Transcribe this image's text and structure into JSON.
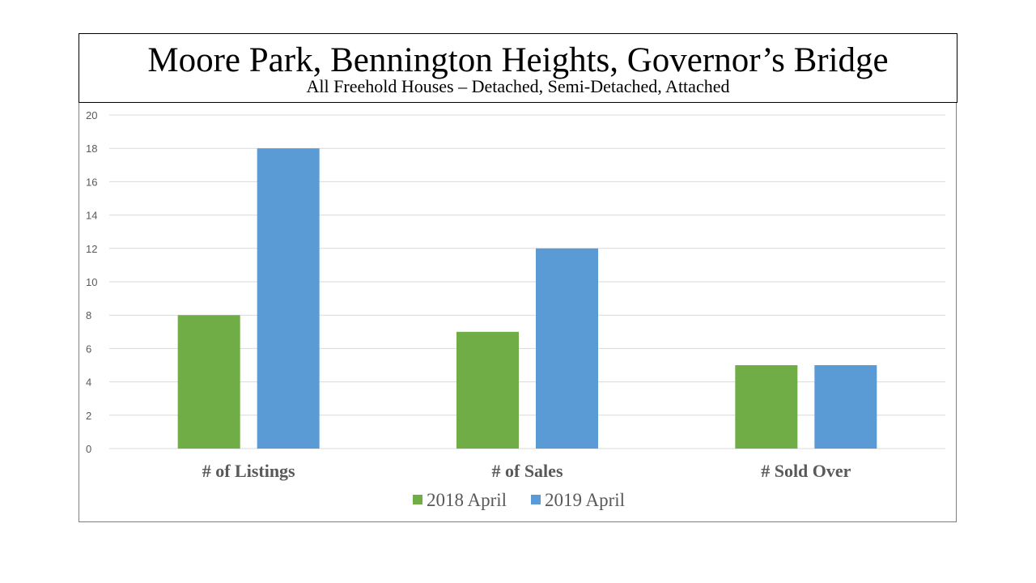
{
  "title": "Moore Park, Bennington Heights, Governor’s Bridge",
  "subtitle": "All Freehold Houses – Detached, Semi-Detached, Attached",
  "chart_data": {
    "type": "bar",
    "title": "Moore Park, Bennington Heights, Governor’s Bridge",
    "subtitle": "All Freehold Houses – Detached, Semi-Detached, Attached",
    "categories": [
      "# of Listings",
      "# of Sales",
      "# Sold Over"
    ],
    "series": [
      {
        "name": "2018 April",
        "values": [
          8,
          7,
          5
        ],
        "color": "#70ad47"
      },
      {
        "name": "2019 April",
        "values": [
          18,
          12,
          5
        ],
        "color": "#5b9bd5"
      }
    ],
    "ylim": [
      0,
      20
    ],
    "yticks": [
      "0",
      "2",
      "4",
      "6",
      "8",
      "10",
      "12",
      "14",
      "16",
      "18",
      "20"
    ],
    "grid": true,
    "legend_position": "bottom",
    "gridline_color": "#d9d9d9"
  }
}
